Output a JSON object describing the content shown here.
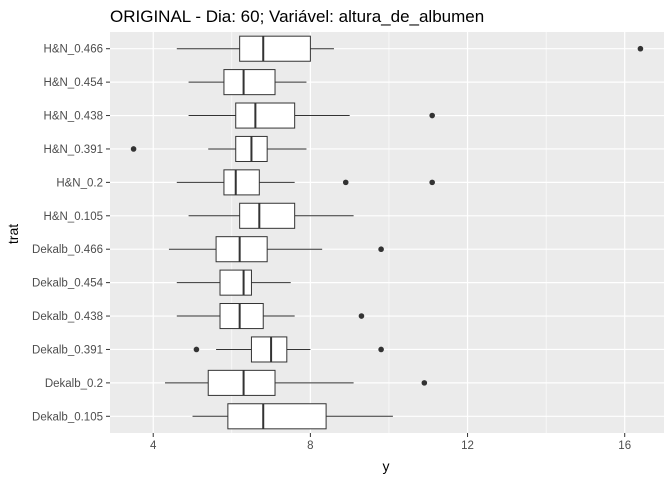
{
  "chart_data": {
    "type": "boxplot",
    "orientation": "horizontal",
    "title": "ORIGINAL - Dia: 60; Variável: altura_de_albumen",
    "xlabel": "y",
    "ylabel": "trat",
    "xlim": [
      2.9,
      17.0
    ],
    "xticks": [
      4,
      8,
      12,
      16
    ],
    "grid": true,
    "background": "#ebebeb",
    "gridColor": "#ffffff",
    "boxFill": "#ffffff",
    "lineColor": "#333333",
    "categories": [
      {
        "label": "H&N_0.466",
        "whiskerLow": 4.6,
        "q1": 6.2,
        "median": 6.8,
        "q3": 8.0,
        "whiskerHigh": 8.6,
        "outliers": [
          16.4
        ]
      },
      {
        "label": "H&N_0.454",
        "whiskerLow": 4.9,
        "q1": 5.8,
        "median": 6.3,
        "q3": 7.1,
        "whiskerHigh": 7.9,
        "outliers": []
      },
      {
        "label": "H&N_0.438",
        "whiskerLow": 4.9,
        "q1": 6.1,
        "median": 6.6,
        "q3": 7.6,
        "whiskerHigh": 9.0,
        "outliers": [
          11.1
        ]
      },
      {
        "label": "H&N_0.391",
        "whiskerLow": 5.4,
        "q1": 6.1,
        "median": 6.5,
        "q3": 6.9,
        "whiskerHigh": 7.9,
        "outliers": [
          3.5
        ]
      },
      {
        "label": "H&N_0.2",
        "whiskerLow": 4.6,
        "q1": 5.8,
        "median": 6.1,
        "q3": 6.7,
        "whiskerHigh": 7.6,
        "outliers": [
          8.9,
          11.1
        ]
      },
      {
        "label": "H&N_0.105",
        "whiskerLow": 4.9,
        "q1": 6.2,
        "median": 6.7,
        "q3": 7.6,
        "whiskerHigh": 9.1,
        "outliers": []
      },
      {
        "label": "Dekalb_0.466",
        "whiskerLow": 4.4,
        "q1": 5.6,
        "median": 6.2,
        "q3": 6.9,
        "whiskerHigh": 8.3,
        "outliers": [
          9.8
        ]
      },
      {
        "label": "Dekalb_0.454",
        "whiskerLow": 4.6,
        "q1": 5.7,
        "median": 6.3,
        "q3": 6.5,
        "whiskerHigh": 7.5,
        "outliers": []
      },
      {
        "label": "Dekalb_0.438",
        "whiskerLow": 4.6,
        "q1": 5.7,
        "median": 6.2,
        "q3": 6.8,
        "whiskerHigh": 7.6,
        "outliers": [
          9.3
        ]
      },
      {
        "label": "Dekalb_0.391",
        "whiskerLow": 5.6,
        "q1": 6.5,
        "median": 7.0,
        "q3": 7.4,
        "whiskerHigh": 8.0,
        "outliers": [
          5.1,
          9.8
        ]
      },
      {
        "label": "Dekalb_0.2",
        "whiskerLow": 4.3,
        "q1": 5.4,
        "median": 6.3,
        "q3": 7.1,
        "whiskerHigh": 9.1,
        "outliers": [
          10.9
        ]
      },
      {
        "label": "Dekalb_0.105",
        "whiskerLow": 5.0,
        "q1": 5.9,
        "median": 6.8,
        "q3": 8.4,
        "whiskerHigh": 10.1,
        "outliers": []
      }
    ]
  }
}
